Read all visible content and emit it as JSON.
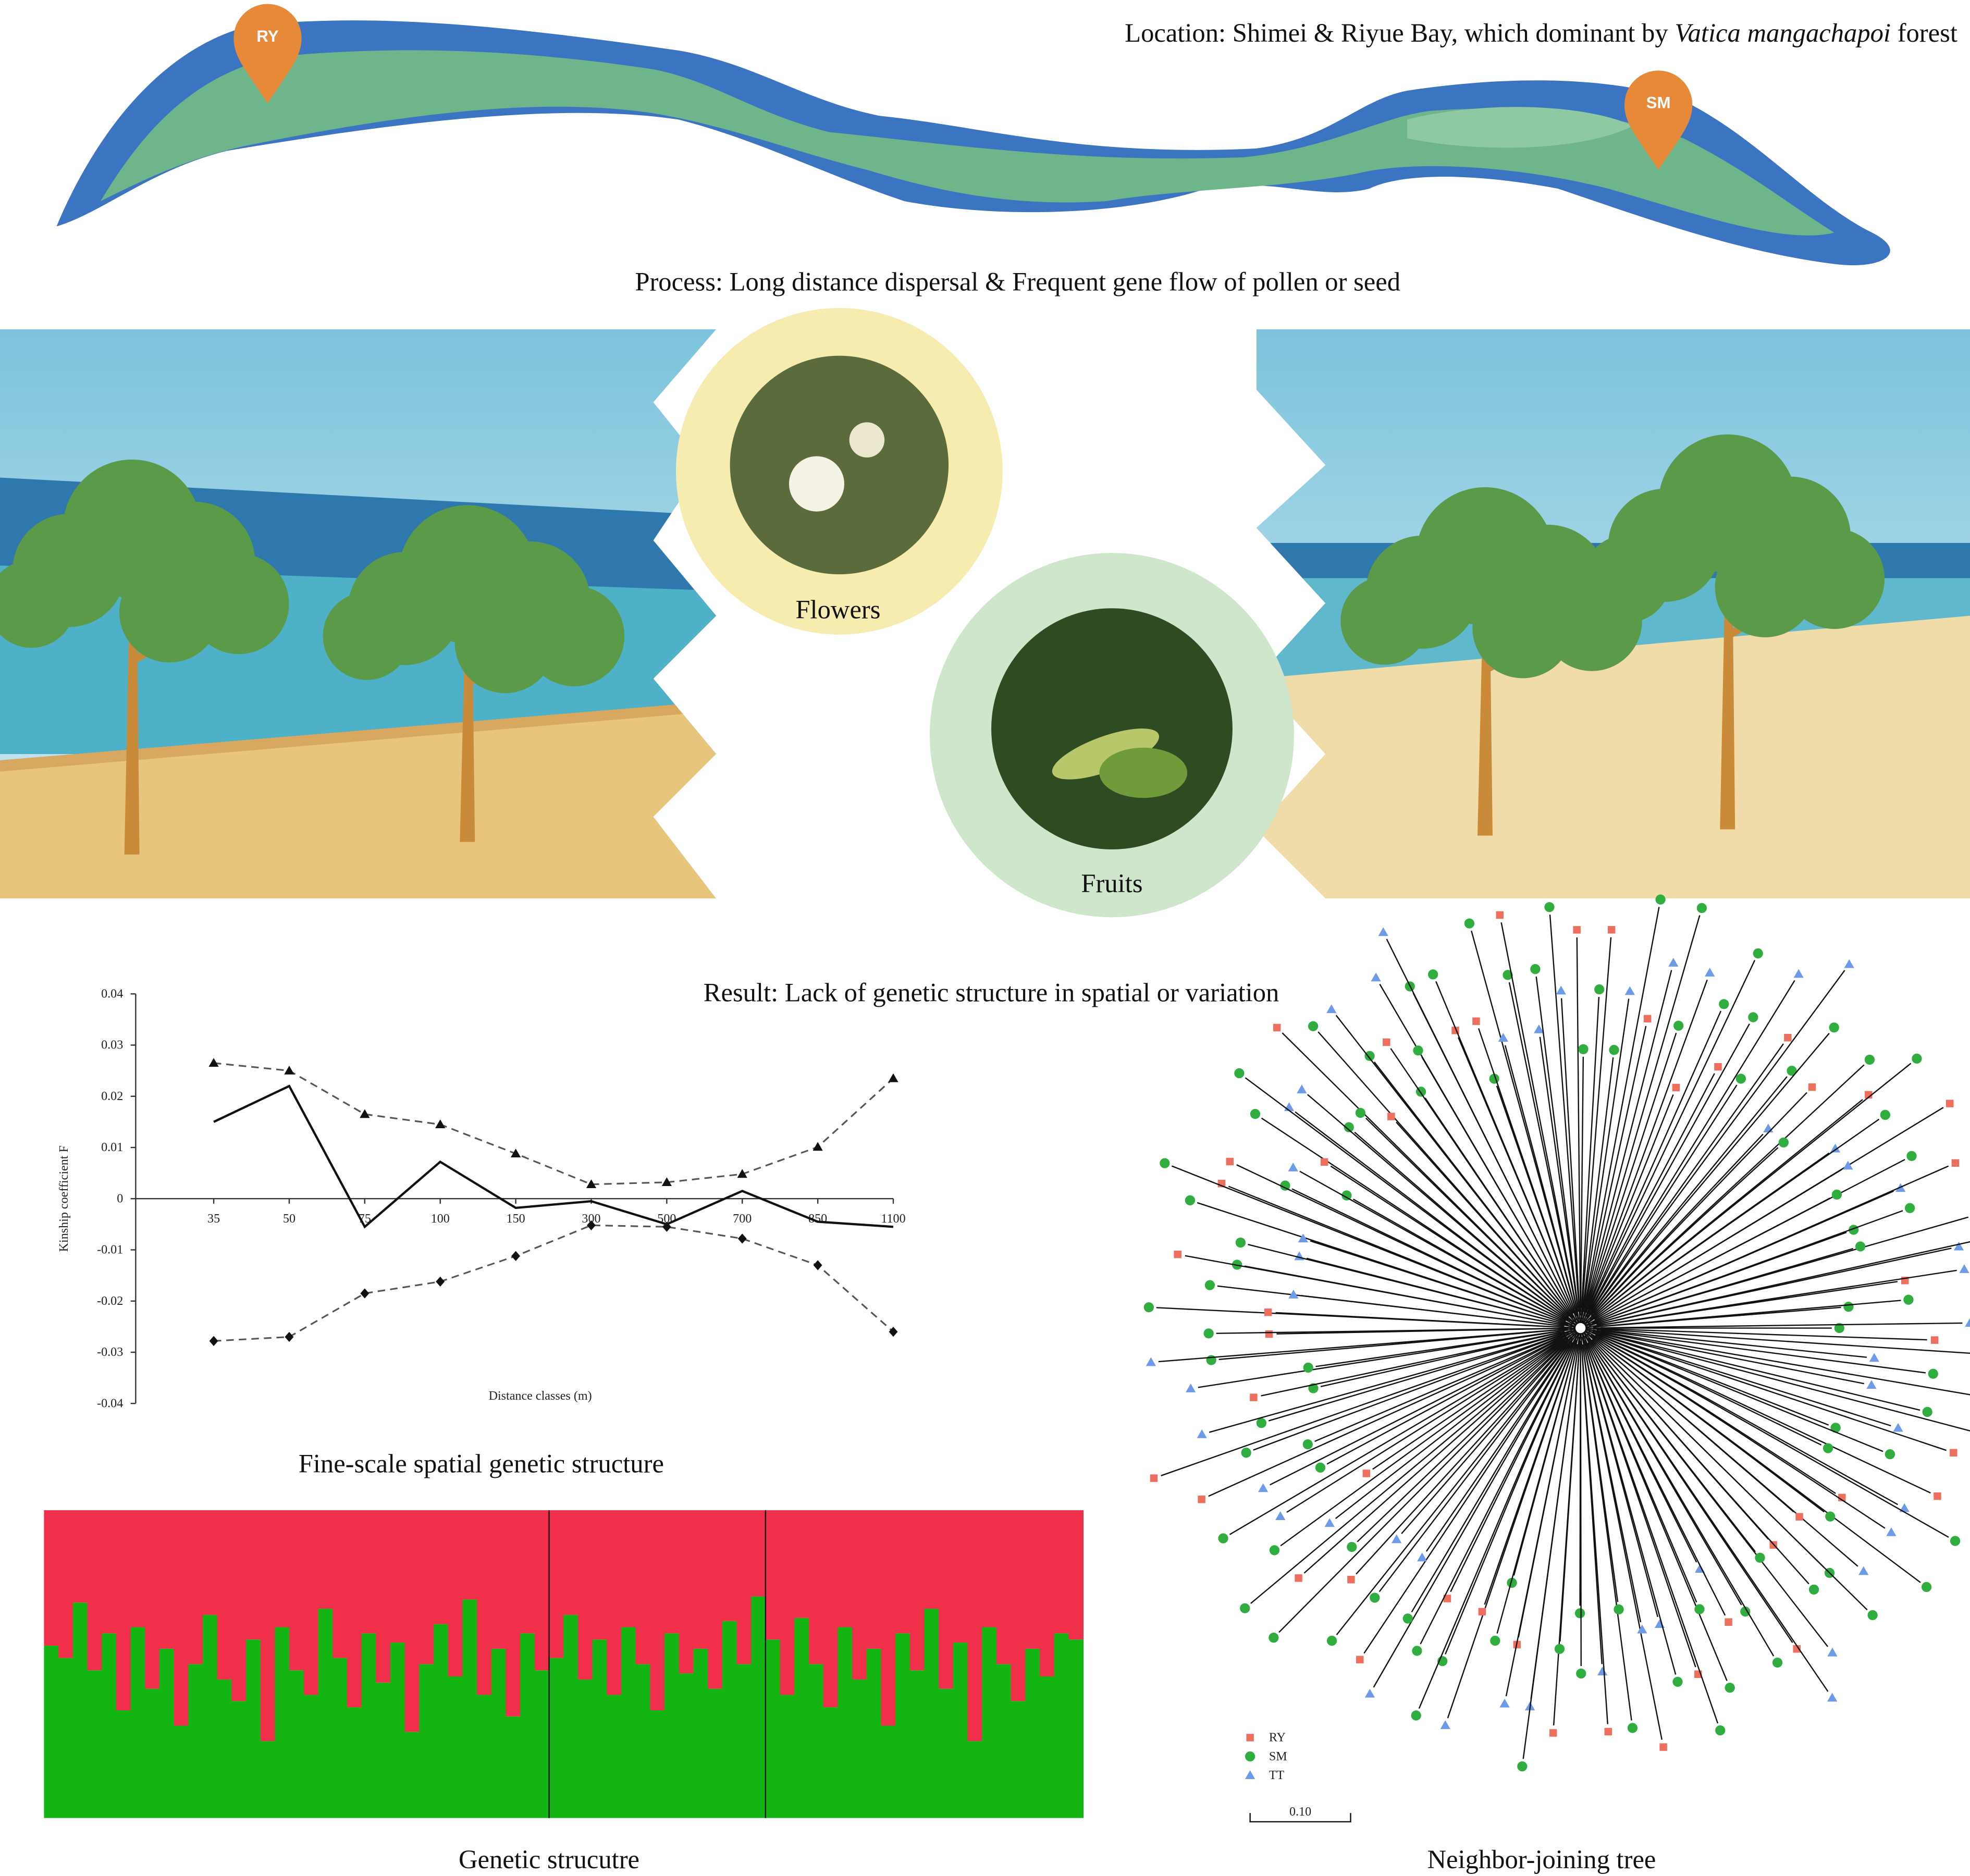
{
  "location": {
    "prefix": "Location: Shimei & Riyue Bay, which dominant by ",
    "species": "Vatica mangachapoi",
    "suffix": " forest"
  },
  "pins": [
    "RY",
    "SM"
  ],
  "process": "Process: Long distance dispersal & Frequent gene flow of pollen or seed",
  "photos": {
    "flowers": "Flowers",
    "fruits": "Fruits"
  },
  "result": "Result: Lack of genetic structure in spatial or variation",
  "chart_data": [
    {
      "type": "line",
      "title": "Fine-scale spatial genetic structure",
      "x_label": "Distance classes (m)",
      "y_label": "Kinship coefficient F",
      "categories": [
        "35",
        "50",
        "75",
        "100",
        "150",
        "300",
        "500",
        "700",
        "850",
        "1100"
      ],
      "ylim": [
        -0.04,
        0.04
      ],
      "yticks": [
        0.04,
        0.03,
        0.02,
        0.01,
        0,
        -0.01,
        -0.02,
        -0.03,
        -0.04
      ],
      "series": [
        {
          "color": "#111111",
          "dash": false,
          "marker": "none",
          "values": [
            0.015,
            0.022,
            -0.0055,
            0.0072,
            -0.0018,
            -0.0005,
            -0.005,
            0.0015,
            -0.0045,
            -0.0055
          ]
        },
        {
          "color": "#555555",
          "dash": true,
          "marker": "triangle",
          "values": [
            0.0265,
            0.025,
            0.0165,
            0.0145,
            0.0088,
            0.0028,
            0.0032,
            0.0048,
            0.0101,
            0.0235
          ]
        },
        {
          "color": "#555555",
          "dash": true,
          "marker": "diamond",
          "values": [
            -0.0278,
            -0.027,
            -0.0185,
            -0.0162,
            -0.0112,
            -0.0052,
            -0.0055,
            -0.0078,
            -0.013,
            -0.026
          ]
        }
      ]
    },
    {
      "type": "stacked",
      "title": "Genetic strucutre",
      "ylim": [
        0,
        1
      ],
      "group_sizes": [
        35,
        15,
        22
      ],
      "series": [
        {
          "color": "#12b512",
          "values": [
            0.56,
            0.52,
            0.7,
            0.48,
            0.6,
            0.35,
            0.62,
            0.42,
            0.55,
            0.3,
            0.5,
            0.66,
            0.45,
            0.38,
            0.58,
            0.25,
            0.62,
            0.48,
            0.4,
            0.68,
            0.52,
            0.36,
            0.6,
            0.44,
            0.57,
            0.28,
            0.5,
            0.63,
            0.46,
            0.71,
            0.4,
            0.55,
            0.33,
            0.6,
            0.48,
            0.52,
            0.66,
            0.45,
            0.58,
            0.4,
            0.62,
            0.5,
            0.35,
            0.6,
            0.47,
            0.55,
            0.42,
            0.64,
            0.5,
            0.72,
            0.58,
            0.4,
            0.65,
            0.5,
            0.36,
            0.62,
            0.45,
            0.55,
            0.3,
            0.6,
            0.48,
            0.68,
            0.42,
            0.57,
            0.25,
            0.62,
            0.5,
            0.38,
            0.55,
            0.46,
            0.6,
            0.58
          ]
        },
        {
          "color": "#f0304a",
          "values": [
            0.44,
            0.48,
            0.3,
            0.52,
            0.4,
            0.65,
            0.38,
            0.58,
            0.45,
            0.7,
            0.5,
            0.34,
            0.55,
            0.62,
            0.42,
            0.75,
            0.38,
            0.52,
            0.6,
            0.32,
            0.48,
            0.64,
            0.4,
            0.56,
            0.43,
            0.72,
            0.5,
            0.37,
            0.54,
            0.29,
            0.6,
            0.45,
            0.67,
            0.4,
            0.52,
            0.48,
            0.34,
            0.55,
            0.42,
            0.6,
            0.38,
            0.5,
            0.65,
            0.4,
            0.53,
            0.45,
            0.58,
            0.36,
            0.5,
            0.28,
            0.42,
            0.6,
            0.35,
            0.5,
            0.64,
            0.38,
            0.55,
            0.45,
            0.7,
            0.4,
            0.52,
            0.32,
            0.58,
            0.43,
            0.75,
            0.38,
            0.5,
            0.62,
            0.45,
            0.54,
            0.4,
            0.42
          ]
        }
      ]
    },
    {
      "type": "tree",
      "title": "Neighbor-joining tree",
      "scale_label": "0.10",
      "legend": [
        {
          "name": "RY",
          "color": "#ef6f5f"
        },
        {
          "name": "SM",
          "color": "#2fae3f"
        },
        {
          "name": "TT",
          "color": "#6e9be8"
        }
      ]
    }
  ]
}
